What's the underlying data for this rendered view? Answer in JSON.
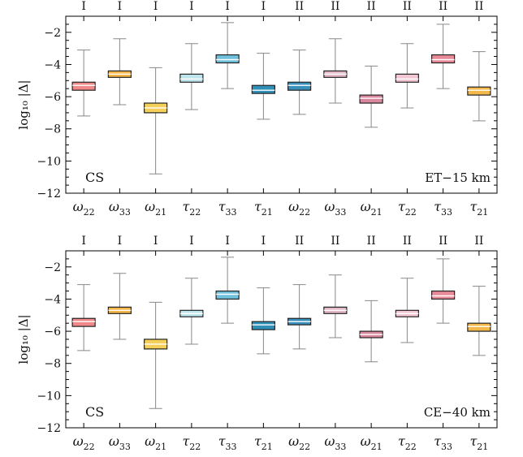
{
  "colors": {
    "omega22": "#f08a8a",
    "omega33": "#f3b548",
    "omega21": "#f4cf5a",
    "tau22": "#bfe6ef",
    "tau33": "#6fc1dc",
    "tau21": "#2f8fb7",
    "omega22_II": "#3a8fba",
    "omega33_II": "#e3b7c6",
    "omega21_II": "#d8879e",
    "tau22_II": "#f2c6d2",
    "tau33_II": "#e98a98",
    "tau21_II": "#f2b84a"
  },
  "chart_data": [
    {
      "type": "box",
      "panel": "top",
      "ylabel": "log₁₀ |Δ|",
      "ylim": [
        -12,
        -1
      ],
      "yticks": [
        -12,
        -10,
        -8,
        -6,
        -4,
        -2
      ],
      "ytick_labels": [
        "−12",
        "−10",
        "−8",
        "−6",
        "−4",
        "−2"
      ],
      "top_labels": [
        "I",
        "I",
        "I",
        "I",
        "I",
        "I",
        "II",
        "II",
        "II",
        "II",
        "II",
        "II"
      ],
      "categories": [
        "ω22",
        "ω33",
        "ω21",
        "τ22",
        "τ33",
        "τ21",
        "ω22",
        "ω33",
        "ω21",
        "τ22",
        "τ33",
        "τ21"
      ],
      "annotation_left": "CS",
      "annotation_right": "ET−15 km",
      "series": [
        {
          "q1": -5.6,
          "median": -5.3,
          "q3": -5.1,
          "min": -7.2,
          "max": -3.1,
          "color_key": "omega22"
        },
        {
          "q1": -4.8,
          "median": -4.6,
          "q3": -4.4,
          "min": -6.5,
          "max": -2.4,
          "color_key": "omega33"
        },
        {
          "q1": -7.0,
          "median": -6.7,
          "q3": -6.4,
          "min": -10.8,
          "max": -4.2,
          "color_key": "omega21"
        },
        {
          "q1": -5.1,
          "median": -4.9,
          "q3": -4.6,
          "min": -6.8,
          "max": -2.7,
          "color_key": "tau22"
        },
        {
          "q1": -3.9,
          "median": -3.7,
          "q3": -3.4,
          "min": -5.5,
          "max": -1.4,
          "color_key": "tau33"
        },
        {
          "q1": -5.8,
          "median": -5.6,
          "q3": -5.3,
          "min": -7.4,
          "max": -3.3,
          "color_key": "tau21"
        },
        {
          "q1": -5.6,
          "median": -5.3,
          "q3": -5.1,
          "min": -7.1,
          "max": -3.1,
          "color_key": "omega22_II"
        },
        {
          "q1": -4.8,
          "median": -4.6,
          "q3": -4.4,
          "min": -6.4,
          "max": -2.4,
          "color_key": "omega33_II"
        },
        {
          "q1": -6.4,
          "median": -6.1,
          "q3": -5.9,
          "min": -7.9,
          "max": -4.1,
          "color_key": "omega21_II"
        },
        {
          "q1": -5.1,
          "median": -4.9,
          "q3": -4.6,
          "min": -6.7,
          "max": -2.7,
          "color_key": "tau22_II"
        },
        {
          "q1": -3.9,
          "median": -3.7,
          "q3": -3.4,
          "min": -5.5,
          "max": -1.5,
          "color_key": "tau33_II"
        },
        {
          "q1": -5.9,
          "median": -5.6,
          "q3": -5.4,
          "min": -7.5,
          "max": -3.2,
          "color_key": "tau21_II"
        }
      ]
    },
    {
      "type": "box",
      "panel": "bottom",
      "ylabel": "log₁₀ |Δ|",
      "ylim": [
        -12,
        -1
      ],
      "yticks": [
        -12,
        -10,
        -8,
        -6,
        -4,
        -2
      ],
      "ytick_labels": [
        "−12",
        "−10",
        "−8",
        "−6",
        "−4",
        "−2"
      ],
      "top_labels": [
        "I",
        "I",
        "I",
        "I",
        "I",
        "I",
        "II",
        "II",
        "II",
        "II",
        "II",
        "II"
      ],
      "categories": [
        "ω22",
        "ω33",
        "ω21",
        "τ22",
        "τ33",
        "τ21",
        "ω22",
        "ω33",
        "ω21",
        "τ22",
        "τ33",
        "τ21"
      ],
      "annotation_left": "CS",
      "annotation_right": "CE−40 km",
      "series": [
        {
          "q1": -5.7,
          "median": -5.4,
          "q3": -5.2,
          "min": -7.2,
          "max": -3.1,
          "color_key": "omega22"
        },
        {
          "q1": -4.9,
          "median": -4.7,
          "q3": -4.5,
          "min": -6.5,
          "max": -2.4,
          "color_key": "omega33"
        },
        {
          "q1": -7.1,
          "median": -6.8,
          "q3": -6.5,
          "min": -10.8,
          "max": -4.2,
          "color_key": "omega21"
        },
        {
          "q1": -5.1,
          "median": -4.9,
          "q3": -4.7,
          "min": -6.8,
          "max": -2.7,
          "color_key": "tau22"
        },
        {
          "q1": -4.0,
          "median": -3.7,
          "q3": -3.5,
          "min": -5.5,
          "max": -1.4,
          "color_key": "tau33"
        },
        {
          "q1": -5.9,
          "median": -5.6,
          "q3": -5.4,
          "min": -7.4,
          "max": -3.3,
          "color_key": "tau21"
        },
        {
          "q1": -5.6,
          "median": -5.4,
          "q3": -5.2,
          "min": -7.1,
          "max": -3.1,
          "color_key": "omega22_II"
        },
        {
          "q1": -4.9,
          "median": -4.7,
          "q3": -4.5,
          "min": -6.4,
          "max": -2.5,
          "color_key": "omega33_II"
        },
        {
          "q1": -6.4,
          "median": -6.2,
          "q3": -6.0,
          "min": -7.9,
          "max": -4.1,
          "color_key": "omega21_II"
        },
        {
          "q1": -5.1,
          "median": -4.9,
          "q3": -4.7,
          "min": -6.7,
          "max": -2.7,
          "color_key": "tau22_II"
        },
        {
          "q1": -4.0,
          "median": -3.8,
          "q3": -3.5,
          "min": -5.5,
          "max": -1.5,
          "color_key": "tau33_II"
        },
        {
          "q1": -6.0,
          "median": -5.7,
          "q3": -5.5,
          "min": -7.5,
          "max": -3.2,
          "color_key": "tau21_II"
        }
      ]
    }
  ]
}
